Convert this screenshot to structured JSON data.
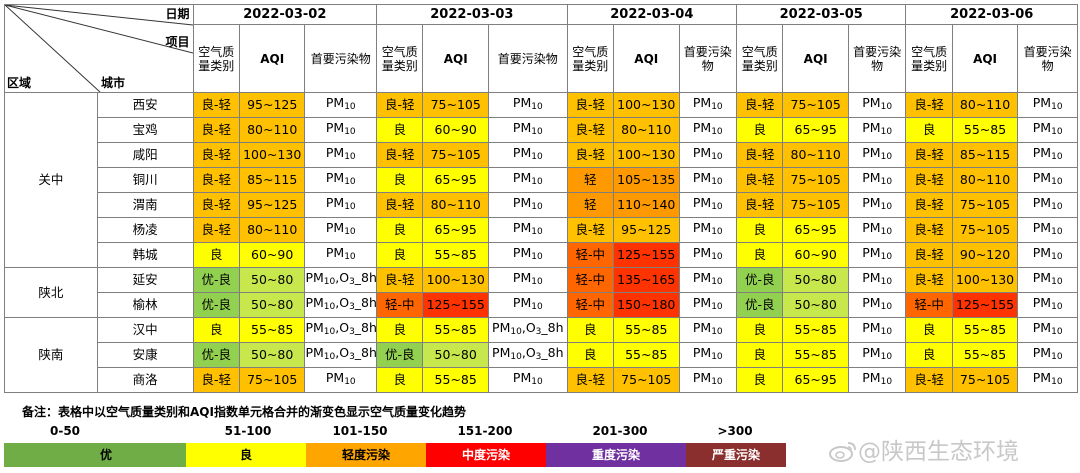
{
  "header": {
    "date_label": "日期",
    "item_label": "项目",
    "region_label": "区域",
    "city_label": "城市",
    "category_label": "空气质量类别",
    "aqi_label": "AQI",
    "pollutant_label": "首要污染物",
    "dates": [
      "2022-03-02",
      "2022-03-03",
      "2022-03-04",
      "2022-03-05",
      "2022-03-06"
    ]
  },
  "regions": [
    {
      "name": "关中",
      "cities": [
        "西安",
        "宝鸡",
        "咸阳",
        "铜川",
        "渭南",
        "杨凌",
        "韩城"
      ]
    },
    {
      "name": "陕北",
      "cities": [
        "延安",
        "榆林"
      ]
    },
    {
      "name": "陕南",
      "cities": [
        "汉中",
        "安康",
        "商洛"
      ]
    }
  ],
  "rows": [
    {
      "city": "西安",
      "days": [
        {
          "cat": "良-轻",
          "aqi": "95~125",
          "pol": "PM10"
        },
        {
          "cat": "良-轻",
          "aqi": "75~105",
          "pol": "PM10"
        },
        {
          "cat": "良-轻",
          "aqi": "100~130",
          "pol": "PM10"
        },
        {
          "cat": "良-轻",
          "aqi": "75~105",
          "pol": "PM10"
        },
        {
          "cat": "良-轻",
          "aqi": "80~110",
          "pol": "PM10"
        }
      ]
    },
    {
      "city": "宝鸡",
      "days": [
        {
          "cat": "良-轻",
          "aqi": "80~110",
          "pol": "PM10"
        },
        {
          "cat": "良",
          "aqi": "60~90",
          "pol": "PM10"
        },
        {
          "cat": "良-轻",
          "aqi": "80~110",
          "pol": "PM10"
        },
        {
          "cat": "良",
          "aqi": "65~95",
          "pol": "PM10"
        },
        {
          "cat": "良",
          "aqi": "55~85",
          "pol": "PM10"
        }
      ]
    },
    {
      "city": "咸阳",
      "days": [
        {
          "cat": "良-轻",
          "aqi": "100~130",
          "pol": "PM10"
        },
        {
          "cat": "良-轻",
          "aqi": "75~105",
          "pol": "PM10"
        },
        {
          "cat": "良-轻",
          "aqi": "100~130",
          "pol": "PM10"
        },
        {
          "cat": "良-轻",
          "aqi": "80~110",
          "pol": "PM10"
        },
        {
          "cat": "良-轻",
          "aqi": "85~115",
          "pol": "PM10"
        }
      ]
    },
    {
      "city": "铜川",
      "days": [
        {
          "cat": "良-轻",
          "aqi": "85~115",
          "pol": "PM10"
        },
        {
          "cat": "良",
          "aqi": "65~95",
          "pol": "PM10"
        },
        {
          "cat": "轻",
          "aqi": "105~135",
          "pol": "PM10"
        },
        {
          "cat": "良-轻",
          "aqi": "75~105",
          "pol": "PM10"
        },
        {
          "cat": "良-轻",
          "aqi": "80~110",
          "pol": "PM10"
        }
      ]
    },
    {
      "city": "渭南",
      "days": [
        {
          "cat": "良-轻",
          "aqi": "95~125",
          "pol": "PM10"
        },
        {
          "cat": "良-轻",
          "aqi": "80~110",
          "pol": "PM10"
        },
        {
          "cat": "轻",
          "aqi": "110~140",
          "pol": "PM10"
        },
        {
          "cat": "良-轻",
          "aqi": "75~105",
          "pol": "PM10"
        },
        {
          "cat": "良-轻",
          "aqi": "75~105",
          "pol": "PM10"
        }
      ]
    },
    {
      "city": "杨凌",
      "days": [
        {
          "cat": "良-轻",
          "aqi": "80~110",
          "pol": "PM10"
        },
        {
          "cat": "良",
          "aqi": "65~95",
          "pol": "PM10"
        },
        {
          "cat": "良-轻",
          "aqi": "95~125",
          "pol": "PM10"
        },
        {
          "cat": "良",
          "aqi": "65~95",
          "pol": "PM10"
        },
        {
          "cat": "良-轻",
          "aqi": "75~105",
          "pol": "PM10"
        }
      ]
    },
    {
      "city": "韩城",
      "days": [
        {
          "cat": "良",
          "aqi": "60~90",
          "pol": "PM10"
        },
        {
          "cat": "良",
          "aqi": "55~85",
          "pol": "PM10"
        },
        {
          "cat": "轻-中",
          "aqi": "125~155",
          "pol": "PM10"
        },
        {
          "cat": "良",
          "aqi": "60~90",
          "pol": "PM10"
        },
        {
          "cat": "良-轻",
          "aqi": "90~120",
          "pol": "PM10"
        }
      ]
    },
    {
      "city": "延安",
      "days": [
        {
          "cat": "优-良",
          "aqi": "50~80",
          "pol": "PM10,O3_8h"
        },
        {
          "cat": "良-轻",
          "aqi": "100~130",
          "pol": "PM10"
        },
        {
          "cat": "轻-中",
          "aqi": "135~165",
          "pol": "PM10"
        },
        {
          "cat": "优-良",
          "aqi": "50~80",
          "pol": "PM10"
        },
        {
          "cat": "良-轻",
          "aqi": "100~130",
          "pol": "PM10"
        }
      ]
    },
    {
      "city": "榆林",
      "days": [
        {
          "cat": "优-良",
          "aqi": "50~80",
          "pol": "PM10,O3_8h"
        },
        {
          "cat": "轻-中",
          "aqi": "125~155",
          "pol": "PM10"
        },
        {
          "cat": "轻-中",
          "aqi": "150~180",
          "pol": "PM10"
        },
        {
          "cat": "优-良",
          "aqi": "50~80",
          "pol": "PM10"
        },
        {
          "cat": "轻-中",
          "aqi": "125~155",
          "pol": "PM10"
        }
      ]
    },
    {
      "city": "汉中",
      "days": [
        {
          "cat": "良",
          "aqi": "55~85",
          "pol": "PM10,O3_8h"
        },
        {
          "cat": "良",
          "aqi": "55~85",
          "pol": "PM10,O3_8h"
        },
        {
          "cat": "良",
          "aqi": "55~85",
          "pol": "PM10"
        },
        {
          "cat": "良",
          "aqi": "55~85",
          "pol": "PM10"
        },
        {
          "cat": "良",
          "aqi": "55~85",
          "pol": "PM10"
        }
      ]
    },
    {
      "city": "安康",
      "days": [
        {
          "cat": "优-良",
          "aqi": "50~80",
          "pol": "PM10,O3_8h"
        },
        {
          "cat": "优-良",
          "aqi": "50~80",
          "pol": "PM10,O3_8h"
        },
        {
          "cat": "良",
          "aqi": "55~85",
          "pol": "PM10"
        },
        {
          "cat": "良",
          "aqi": "55~85",
          "pol": "PM10"
        },
        {
          "cat": "良",
          "aqi": "55~85",
          "pol": "PM10"
        }
      ]
    },
    {
      "city": "商洛",
      "days": [
        {
          "cat": "良-轻",
          "aqi": "75~105",
          "pol": "PM10"
        },
        {
          "cat": "良",
          "aqi": "55~85",
          "pol": "PM10"
        },
        {
          "cat": "良-轻",
          "aqi": "75~105",
          "pol": "PM10"
        },
        {
          "cat": "良",
          "aqi": "65~95",
          "pol": "PM10"
        },
        {
          "cat": "良-轻",
          "aqi": "75~105",
          "pol": "PM10"
        }
      ]
    }
  ],
  "cell_colors": {
    "良-轻": {
      "cat": "#ffc000",
      "aqi": "#ffc000",
      "pol": "#ffffff"
    },
    "良": {
      "cat": "#ffff00",
      "aqi": "#ffff00",
      "pol": "#ffffff"
    },
    "轻": {
      "cat": "#ff9900",
      "aqi": "#ff9900",
      "pol": "#ffffff"
    },
    "轻-中": {
      "cat": "#ff6600",
      "aqi": "#ff3300",
      "pol": "#ffffff"
    },
    "优-良": {
      "cat": "#92d050",
      "aqi": "#c7e84d",
      "pol": "#ffffff"
    }
  },
  "note": "备注：表格中以空气质量类别和AQI指数单元格合并的渐变色显示空气质量变化趋势",
  "legend": [
    {
      "range": "0-50",
      "label": "优",
      "color": "#70ad47",
      "text_color": "#000000"
    },
    {
      "range": "51-100",
      "label": "良",
      "color": "#ffff00",
      "text_color": "#000000"
    },
    {
      "range": "101-150",
      "label": "轻度污染",
      "color": "#ffa500",
      "text_color": "#000000"
    },
    {
      "range": "151-200",
      "label": "中度污染",
      "color": "#ff0000",
      "text_color": "#ffffff"
    },
    {
      "range": "201-300",
      "label": "重度污染",
      "color": "#7030a0",
      "text_color": "#ffffff"
    },
    {
      "range": ">300",
      "label": "严重污染",
      "color": "#8b2e2e",
      "text_color": "#ffffff"
    }
  ],
  "watermark": "@陕西生态环境"
}
